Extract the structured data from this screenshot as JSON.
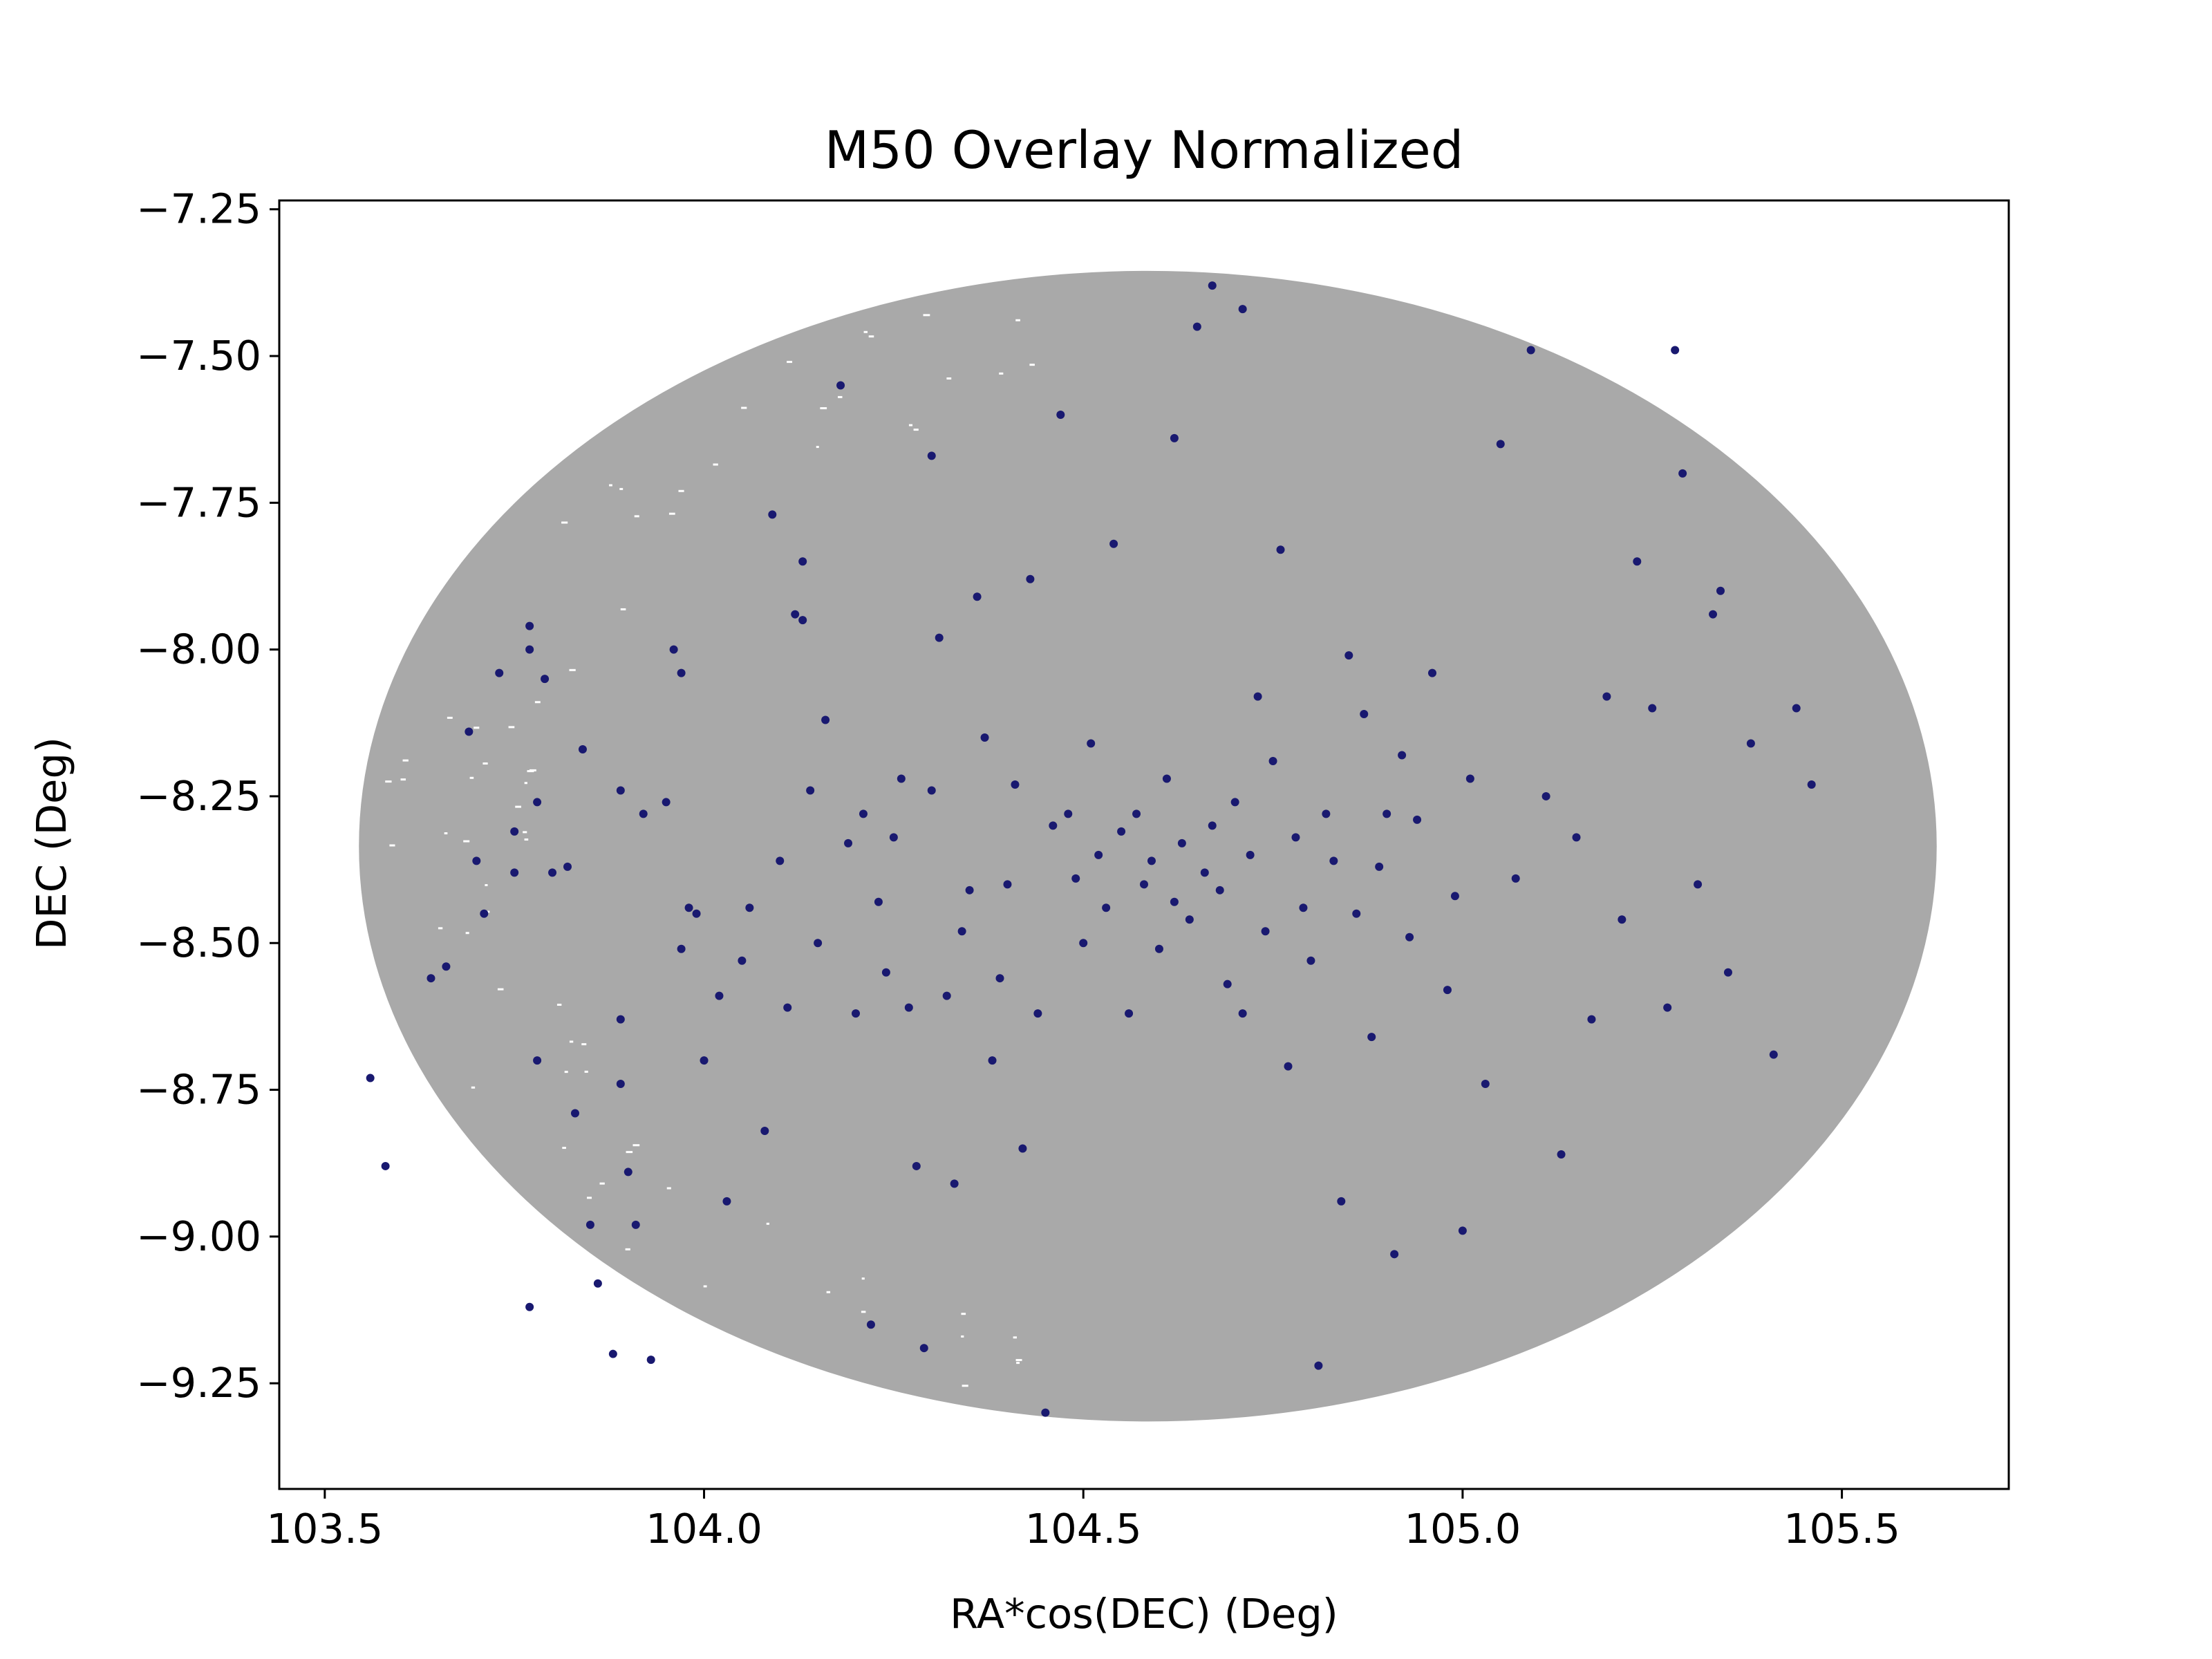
{
  "chart_data": {
    "type": "scatter",
    "title": "M50 Overlay Normalized",
    "xlabel": "RA*cos(DEC) (Deg)",
    "ylabel": "DEC (Deg)",
    "xlim": [
      103.44,
      105.72
    ],
    "ylim": [
      -9.43,
      -7.235
    ],
    "x_ticks": [
      103.5,
      104.0,
      104.5,
      105.0,
      105.5
    ],
    "x_tick_labels": [
      "103.5",
      "104.0",
      "104.5",
      "105.0",
      "105.5"
    ],
    "y_ticks": [
      -7.25,
      -7.5,
      -7.75,
      -8.0,
      -8.25,
      -8.5,
      -8.75,
      -9.0,
      -9.25
    ],
    "y_tick_labels": [
      "−7.25",
      "−7.50",
      "−7.75",
      "−8.00",
      "−8.25",
      "−8.50",
      "−8.75",
      "−9.00",
      "−9.25"
    ],
    "grid": false,
    "legend": "none",
    "colors": {
      "background_points": "#a9a9a9",
      "cluster_points": "#191970"
    },
    "series": [
      {
        "role": "background field stars",
        "color": "#a9a9a9",
        "shape": "ellipse",
        "center": [
          104.585,
          -8.335
        ],
        "semi_axes": [
          1.04,
          0.98
        ],
        "note_extent": {
          "ra_range": [
            103.54,
            105.63
          ],
          "dec_range": [
            -9.34,
            -7.34
          ]
        }
      },
      {
        "role": "cluster members",
        "color": "#191970",
        "points": [
          [
            103.56,
            -8.73
          ],
          [
            103.58,
            -8.88
          ],
          [
            103.64,
            -8.56
          ],
          [
            103.66,
            -8.54
          ],
          [
            103.69,
            -8.14
          ],
          [
            103.7,
            -8.36
          ],
          [
            103.71,
            -8.45
          ],
          [
            103.73,
            -8.04
          ],
          [
            103.75,
            -8.31
          ],
          [
            103.75,
            -8.38
          ],
          [
            103.77,
            -7.96
          ],
          [
            103.77,
            -8.0
          ],
          [
            103.78,
            -8.26
          ],
          [
            103.78,
            -8.7
          ],
          [
            103.79,
            -8.05
          ],
          [
            103.8,
            -8.38
          ],
          [
            103.82,
            -8.37
          ],
          [
            103.83,
            -8.79
          ],
          [
            103.84,
            -8.17
          ],
          [
            103.85,
            -8.98
          ],
          [
            103.86,
            -9.08
          ],
          [
            103.77,
            -9.12
          ],
          [
            103.88,
            -9.2
          ],
          [
            103.89,
            -8.24
          ],
          [
            103.89,
            -8.63
          ],
          [
            103.89,
            -8.74
          ],
          [
            103.9,
            -8.89
          ],
          [
            103.91,
            -8.98
          ],
          [
            103.92,
            -8.28
          ],
          [
            103.93,
            -9.21
          ],
          [
            103.96,
            -8.0
          ],
          [
            103.97,
            -8.04
          ],
          [
            103.95,
            -8.26
          ],
          [
            103.97,
            -8.51
          ],
          [
            103.98,
            -8.44
          ],
          [
            103.99,
            -8.45
          ],
          [
            104.0,
            -8.7
          ],
          [
            104.02,
            -8.59
          ],
          [
            104.03,
            -8.94
          ],
          [
            104.05,
            -8.53
          ],
          [
            104.06,
            -8.44
          ],
          [
            104.08,
            -8.82
          ],
          [
            104.09,
            -7.77
          ],
          [
            104.1,
            -8.36
          ],
          [
            104.11,
            -8.61
          ],
          [
            104.12,
            -7.94
          ],
          [
            104.13,
            -7.95
          ],
          [
            104.14,
            -8.24
          ],
          [
            104.15,
            -8.5
          ],
          [
            104.16,
            -8.12
          ],
          [
            104.18,
            -7.55
          ],
          [
            104.19,
            -8.33
          ],
          [
            104.2,
            -8.62
          ],
          [
            104.21,
            -8.28
          ],
          [
            104.22,
            -9.15
          ],
          [
            104.23,
            -8.43
          ],
          [
            104.24,
            -8.55
          ],
          [
            104.25,
            -8.32
          ],
          [
            104.26,
            -8.22
          ],
          [
            104.27,
            -8.61
          ],
          [
            104.28,
            -8.88
          ],
          [
            104.29,
            -9.19
          ],
          [
            104.3,
            -8.24
          ],
          [
            104.31,
            -7.98
          ],
          [
            104.32,
            -8.59
          ],
          [
            104.33,
            -8.91
          ],
          [
            104.34,
            -8.48
          ],
          [
            104.35,
            -8.41
          ],
          [
            104.36,
            -7.91
          ],
          [
            104.37,
            -8.15
          ],
          [
            104.38,
            -8.7
          ],
          [
            104.39,
            -8.56
          ],
          [
            104.4,
            -8.4
          ],
          [
            104.41,
            -8.23
          ],
          [
            104.42,
            -8.85
          ],
          [
            104.43,
            -7.88
          ],
          [
            104.44,
            -8.62
          ],
          [
            104.45,
            -9.3
          ],
          [
            104.46,
            -8.3
          ],
          [
            104.47,
            -7.6
          ],
          [
            104.48,
            -8.28
          ],
          [
            104.49,
            -8.39
          ],
          [
            104.5,
            -8.5
          ],
          [
            104.51,
            -8.16
          ],
          [
            104.52,
            -8.35
          ],
          [
            104.53,
            -8.44
          ],
          [
            104.54,
            -7.82
          ],
          [
            104.55,
            -8.31
          ],
          [
            104.56,
            -8.62
          ],
          [
            104.57,
            -8.28
          ],
          [
            104.58,
            -8.4
          ],
          [
            104.59,
            -8.36
          ],
          [
            104.6,
            -8.51
          ],
          [
            104.61,
            -8.22
          ],
          [
            104.62,
            -8.43
          ],
          [
            104.63,
            -8.33
          ],
          [
            104.64,
            -8.46
          ],
          [
            104.65,
            -7.45
          ],
          [
            104.66,
            -8.38
          ],
          [
            104.67,
            -8.3
          ],
          [
            104.68,
            -8.41
          ],
          [
            104.69,
            -8.57
          ],
          [
            104.7,
            -8.26
          ],
          [
            104.71,
            -8.62
          ],
          [
            104.72,
            -8.35
          ],
          [
            104.73,
            -8.08
          ],
          [
            104.74,
            -8.48
          ],
          [
            104.75,
            -8.19
          ],
          [
            104.76,
            -7.83
          ],
          [
            104.77,
            -8.71
          ],
          [
            104.78,
            -8.32
          ],
          [
            104.79,
            -8.44
          ],
          [
            104.8,
            -8.53
          ],
          [
            104.81,
            -9.22
          ],
          [
            104.82,
            -8.28
          ],
          [
            104.83,
            -8.36
          ],
          [
            104.84,
            -8.94
          ],
          [
            104.85,
            -8.01
          ],
          [
            104.86,
            -8.45
          ],
          [
            104.87,
            -8.11
          ],
          [
            104.88,
            -8.66
          ],
          [
            104.89,
            -8.37
          ],
          [
            104.9,
            -8.28
          ],
          [
            104.91,
            -9.03
          ],
          [
            104.92,
            -8.18
          ],
          [
            104.93,
            -8.49
          ],
          [
            104.94,
            -8.29
          ],
          [
            104.96,
            -8.04
          ],
          [
            104.98,
            -8.58
          ],
          [
            104.99,
            -8.42
          ],
          [
            105.0,
            -8.99
          ],
          [
            105.01,
            -8.22
          ],
          [
            105.03,
            -8.74
          ],
          [
            105.05,
            -7.65
          ],
          [
            105.07,
            -8.39
          ],
          [
            105.09,
            -7.49
          ],
          [
            105.11,
            -8.25
          ],
          [
            105.13,
            -8.86
          ],
          [
            105.15,
            -8.32
          ],
          [
            105.17,
            -8.63
          ],
          [
            105.19,
            -8.08
          ],
          [
            105.21,
            -8.46
          ],
          [
            105.23,
            -7.85
          ],
          [
            105.25,
            -8.1
          ],
          [
            105.27,
            -8.61
          ],
          [
            105.29,
            -7.7
          ],
          [
            105.31,
            -8.4
          ],
          [
            105.33,
            -7.94
          ],
          [
            105.35,
            -8.55
          ],
          [
            105.38,
            -8.16
          ],
          [
            105.41,
            -8.69
          ],
          [
            105.44,
            -8.1
          ],
          [
            105.46,
            -8.23
          ],
          [
            105.34,
            -7.9
          ],
          [
            105.28,
            -7.49
          ],
          [
            104.67,
            -7.38
          ],
          [
            104.71,
            -7.42
          ],
          [
            104.62,
            -7.64
          ],
          [
            104.3,
            -7.67
          ],
          [
            104.13,
            -7.85
          ]
        ]
      }
    ]
  }
}
